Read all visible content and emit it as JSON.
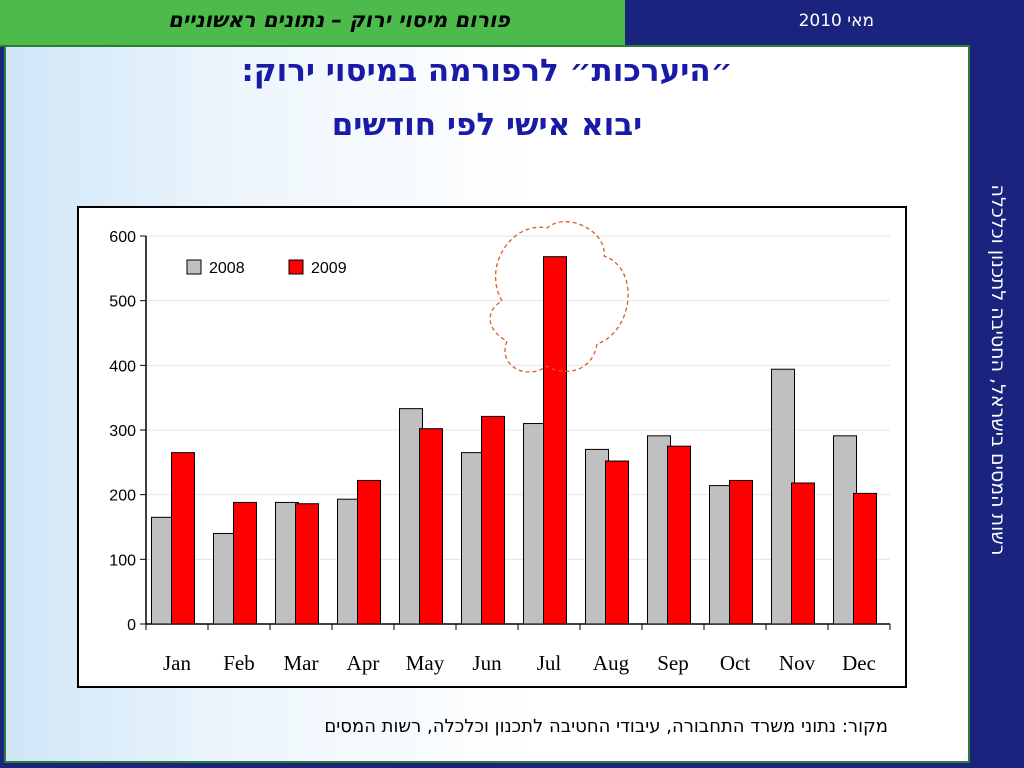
{
  "header": {
    "forum_title": "פורום מיסוי ירוק – נתונים ראשוניים",
    "date": "מאי  2010"
  },
  "sidebar": {
    "text": "רשות המסים בישראל, החטיבה לתכנון וכלכלה"
  },
  "slide": {
    "title_line1": "״היערכות״ לרפורמה במיסוי ירוק:",
    "title_line2": "יבוא אישי לפי חודשים",
    "source": "מקור: נתוני משרד התחבורה, עיבודי החטיבה לתכנון וכלכלה, רשות המסים"
  },
  "chart_data": {
    "type": "bar",
    "categories": [
      "Jan",
      "Feb",
      "Mar",
      "Apr",
      "May",
      "Jun",
      "Jul",
      "Aug",
      "Sep",
      "Oct",
      "Nov",
      "Dec"
    ],
    "series": [
      {
        "name": "2008",
        "values": [
          165,
          140,
          188,
          193,
          333,
          265,
          310,
          270,
          291,
          214,
          394,
          291
        ],
        "color": "#c0c0c0"
      },
      {
        "name": "2009",
        "values": [
          265,
          188,
          186,
          222,
          302,
          321,
          568,
          252,
          275,
          222,
          218,
          202
        ],
        "color": "#ff0000"
      }
    ],
    "yticks": [
      "0",
      "100",
      "200",
      "300",
      "400",
      "500",
      "600"
    ],
    "ylim": [
      0,
      600
    ],
    "grid": true,
    "legend_position": "top-left",
    "highlight_category": "Jul"
  }
}
